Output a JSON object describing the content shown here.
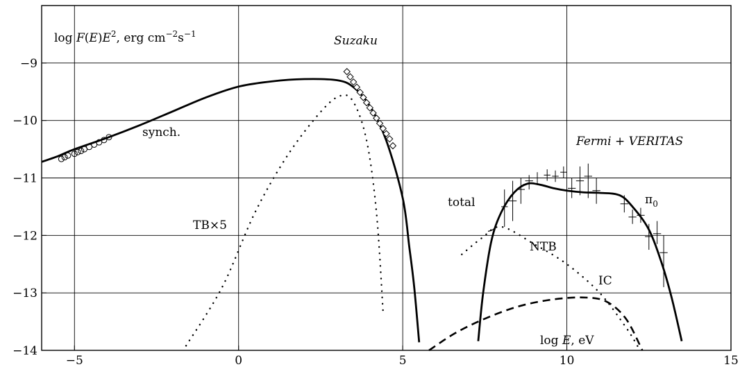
{
  "chart_data": {
    "type": "line",
    "title": "",
    "xlabel": "log E, eV",
    "ylabel": "log F(E)E², erg cm⁻²s⁻¹",
    "xlim": [
      -6,
      15
    ],
    "ylim": [
      -14,
      -8
    ],
    "log_scale": true,
    "grid": true,
    "x_ticks": [
      -5,
      0,
      5,
      10,
      15
    ],
    "y_ticks": [
      -9,
      -10,
      -11,
      -12,
      -13,
      -14
    ],
    "x_tick_labels": [
      "−5",
      "0",
      "5",
      "10",
      "15"
    ],
    "y_tick_labels": [
      "−9",
      "−10",
      "−11",
      "−12",
      "−13",
      "−14"
    ],
    "labels": {
      "ylabel_parts": {
        "a": "log ",
        "b": "F",
        "c": "(",
        "d": "E",
        "e": ")",
        "f": "E",
        "g": "2",
        "h": ", erg cm",
        "i": "−2",
        "j": "s",
        "k": "−1"
      },
      "xlabel_parts": {
        "a": "log ",
        "b": "E",
        "c": ", eV"
      },
      "suzaku": "Suzaku",
      "fermi": "Fermi + VERITAS",
      "synch": "synch.",
      "tb": "TB×5",
      "total": "total",
      "ntb": "NTB",
      "ic": "IC",
      "pi0_base": "π",
      "pi0_sub": "0"
    },
    "series": [
      {
        "name": "synch.",
        "style": "solid-thick",
        "points": [
          [
            -6,
            -10.72
          ],
          [
            -5.5,
            -10.62
          ],
          [
            -5,
            -10.5
          ],
          [
            -4,
            -10.3
          ],
          [
            -3,
            -10.08
          ],
          [
            -2,
            -9.84
          ],
          [
            -1,
            -9.6
          ],
          [
            0,
            -9.41
          ],
          [
            1,
            -9.32
          ],
          [
            2,
            -9.28
          ],
          [
            3,
            -9.3
          ],
          [
            3.5,
            -9.42
          ],
          [
            4,
            -9.75
          ],
          [
            4.5,
            -10.35
          ],
          [
            5,
            -11.35
          ],
          [
            5.2,
            -12.2
          ],
          [
            5.35,
            -12.9
          ],
          [
            5.5,
            -13.86
          ]
        ]
      },
      {
        "name": "TB×5",
        "style": "dotted",
        "points": [
          [
            -1.6,
            -13.92
          ],
          [
            -0.5,
            -12.9
          ],
          [
            0.5,
            -11.6
          ],
          [
            1.5,
            -10.6
          ],
          [
            2.5,
            -9.85
          ],
          [
            3.1,
            -9.57
          ],
          [
            3.5,
            -9.68
          ],
          [
            3.9,
            -10.35
          ],
          [
            4.2,
            -11.6
          ],
          [
            4.4,
            -13.32
          ]
        ]
      },
      {
        "name": "total",
        "style": "solid-thin",
        "points": [
          [
            7.6,
            -11.93
          ],
          [
            7.8,
            -11.87
          ],
          [
            8,
            -11.6
          ],
          [
            8.3,
            -11.3
          ]
        ]
      },
      {
        "name": "π₀",
        "style": "solid-thick",
        "points": [
          [
            7.3,
            -13.84
          ],
          [
            7.45,
            -13
          ],
          [
            7.7,
            -12.1
          ],
          [
            8,
            -11.6
          ],
          [
            8.4,
            -11.25
          ],
          [
            8.8,
            -11.1
          ],
          [
            9.2,
            -11.12
          ],
          [
            9.6,
            -11.18
          ],
          [
            10,
            -11.22
          ],
          [
            10.5,
            -11.25
          ],
          [
            11,
            -11.26
          ],
          [
            11.6,
            -11.3
          ],
          [
            12,
            -11.5
          ],
          [
            12.5,
            -11.9
          ],
          [
            12.9,
            -12.5
          ],
          [
            13.2,
            -13.1
          ],
          [
            13.5,
            -13.84
          ]
        ]
      },
      {
        "name": "NTB",
        "style": "dotted",
        "points": [
          [
            6.8,
            -12.33
          ],
          [
            7.4,
            -12.05
          ],
          [
            8,
            -11.85
          ],
          [
            9,
            -12.15
          ],
          [
            10,
            -12.5
          ],
          [
            11,
            -13
          ],
          [
            11.8,
            -13.6
          ],
          [
            12.2,
            -13.97
          ]
        ]
      },
      {
        "name": "IC",
        "style": "dashed",
        "points": [
          [
            5.8,
            -14
          ],
          [
            6.6,
            -13.7
          ],
          [
            7.5,
            -13.45
          ],
          [
            8.5,
            -13.24
          ],
          [
            9.5,
            -13.12
          ],
          [
            10.5,
            -13.08
          ],
          [
            11.2,
            -13.15
          ],
          [
            11.8,
            -13.45
          ],
          [
            12.3,
            -14
          ]
        ]
      }
    ],
    "markers": [
      {
        "name": "synch. data",
        "shape": "circle",
        "points": [
          [
            -5.4,
            -10.67
          ],
          [
            -5.3,
            -10.64
          ],
          [
            -5.2,
            -10.61
          ],
          [
            -5.0,
            -10.58
          ],
          [
            -4.9,
            -10.55
          ],
          [
            -4.8,
            -10.53
          ],
          [
            -4.7,
            -10.5
          ],
          [
            -4.55,
            -10.46
          ],
          [
            -4.4,
            -10.42
          ],
          [
            -4.25,
            -10.38
          ],
          [
            -4.1,
            -10.34
          ],
          [
            -3.95,
            -10.29
          ]
        ]
      },
      {
        "name": "Suzaku",
        "shape": "diamond",
        "points": [
          [
            3.3,
            -9.15
          ],
          [
            3.4,
            -9.24
          ],
          [
            3.5,
            -9.33
          ],
          [
            3.6,
            -9.42
          ],
          [
            3.7,
            -9.51
          ],
          [
            3.8,
            -9.6
          ],
          [
            3.9,
            -9.69
          ],
          [
            4.0,
            -9.78
          ],
          [
            4.1,
            -9.87
          ],
          [
            4.2,
            -9.96
          ],
          [
            4.3,
            -10.05
          ],
          [
            4.4,
            -10.14
          ],
          [
            4.5,
            -10.23
          ],
          [
            4.6,
            -10.32
          ],
          [
            4.7,
            -10.44
          ]
        ]
      },
      {
        "name": "Fermi + VERITAS",
        "shape": "cross",
        "points": [
          {
            "x": 8.1,
            "y": -11.5,
            "xerr": 0.1,
            "ylo": -11.85,
            "yhi": -11.2
          },
          {
            "x": 8.35,
            "y": -11.4,
            "xerr": 0.12,
            "ylo": -11.75,
            "yhi": -11.05
          },
          {
            "x": 8.6,
            "y": -11.2,
            "xerr": 0.12,
            "ylo": -11.45,
            "yhi": -11.0
          },
          {
            "x": 8.85,
            "y": -11.05,
            "xerr": 0.12,
            "ylo": -11.2,
            "yhi": -10.95
          },
          {
            "x": 9.1,
            "y": -11.0,
            "xerr": 0.12,
            "ylo": -11.1,
            "yhi": -10.9
          },
          {
            "x": 9.4,
            "y": -10.95,
            "xerr": 0.1,
            "ylo": -11.05,
            "yhi": -10.85
          },
          {
            "x": 9.65,
            "y": -10.97,
            "xerr": 0.1,
            "ylo": -11.07,
            "yhi": -10.87
          },
          {
            "x": 9.9,
            "y": -10.9,
            "xerr": 0.1,
            "ylo": -11.0,
            "yhi": -10.8
          },
          {
            "x": 10.15,
            "y": -11.18,
            "xerr": 0.12,
            "ylo": -11.35,
            "yhi": -11.0
          },
          {
            "x": 10.4,
            "y": -11.05,
            "xerr": 0.12,
            "ylo": -11.3,
            "yhi": -10.8
          },
          {
            "x": 10.65,
            "y": -10.97,
            "xerr": 0.12,
            "ylo": -11.35,
            "yhi": -10.75
          },
          {
            "x": 10.9,
            "y": -11.22,
            "xerr": 0.12,
            "ylo": -11.45,
            "yhi": -11.0
          },
          {
            "x": 11.75,
            "y": -11.45,
            "xerr": 0.12,
            "ylo": -11.6,
            "yhi": -11.3
          },
          {
            "x": 12.0,
            "y": -11.68,
            "xerr": 0.12,
            "ylo": -11.8,
            "yhi": -11.55
          },
          {
            "x": 12.25,
            "y": -11.65,
            "xerr": 0.12,
            "ylo": -11.78,
            "yhi": -11.52
          },
          {
            "x": 12.5,
            "y": -12.02,
            "xerr": 0.12,
            "ylo": -12.25,
            "yhi": -11.8
          },
          {
            "x": 12.75,
            "y": -11.97,
            "xerr": 0.12,
            "ylo": -12.15,
            "yhi": -11.75
          },
          {
            "x": 12.95,
            "y": -12.3,
            "xerr": 0.12,
            "ylo": -12.9,
            "yhi": -12.0
          }
        ]
      }
    ]
  }
}
